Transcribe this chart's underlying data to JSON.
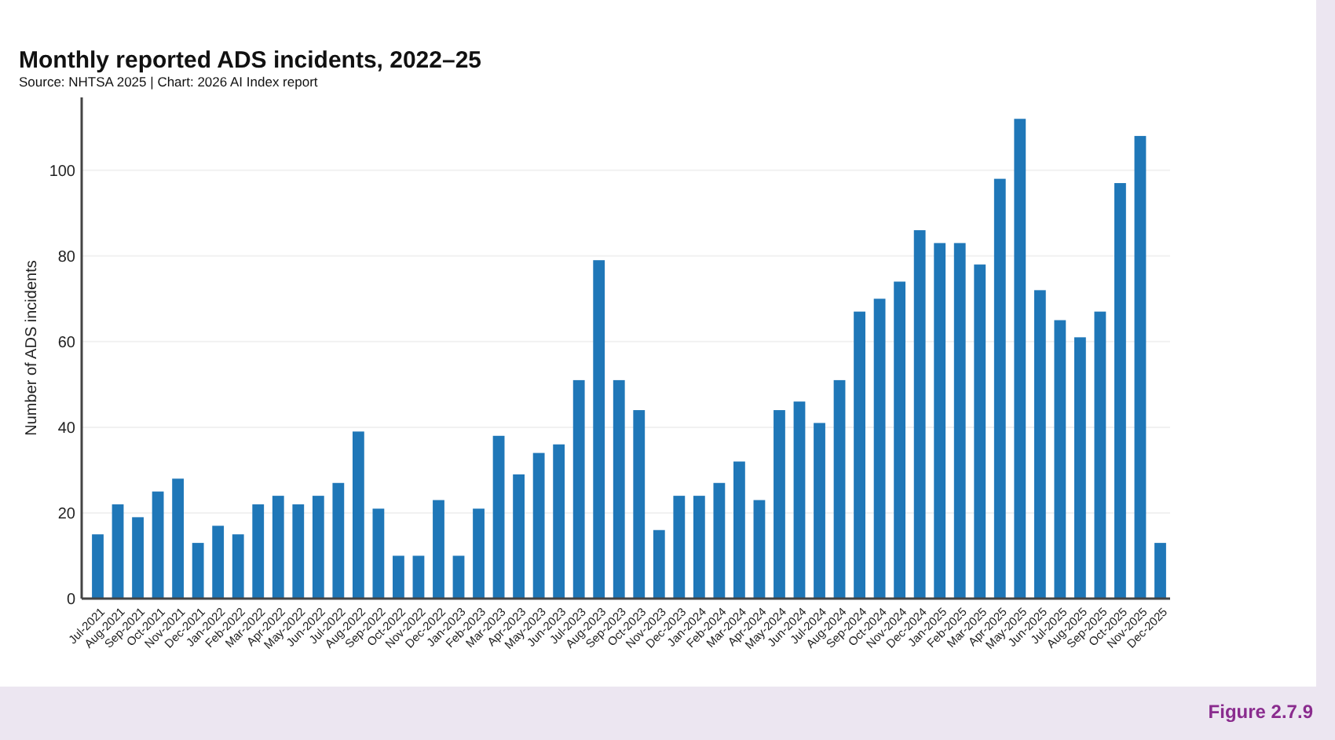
{
  "chart_data": {
    "type": "bar",
    "title": "Monthly reported ADS incidents, 2022–25",
    "subtitle": "Source: NHTSA 2025 | Chart: 2026 AI Index report",
    "ylabel": "Number of ADS incidents",
    "annotations": [
      "Figure 2.7.9"
    ],
    "categories": [
      "Jul-2021",
      "Aug-2021",
      "Sep-2021",
      "Oct-2021",
      "Nov-2021",
      "Dec-2021",
      "Jan-2022",
      "Feb-2022",
      "Mar-2022",
      "Apr-2022",
      "May-2022",
      "Jun-2022",
      "Jul-2022",
      "Aug-2022",
      "Sep-2022",
      "Oct-2022",
      "Nov-2022",
      "Dec-2022",
      "Jan-2023",
      "Feb-2023",
      "Mar-2023",
      "Apr-2023",
      "May-2023",
      "Jun-2023",
      "Jul-2023",
      "Aug-2023",
      "Sep-2023",
      "Oct-2023",
      "Nov-2023",
      "Dec-2023",
      "Jan-2024",
      "Feb-2024",
      "Mar-2024",
      "Apr-2024",
      "May-2024",
      "Jun-2024",
      "Jul-2024",
      "Aug-2024",
      "Sep-2024",
      "Oct-2024",
      "Nov-2024",
      "Dec-2024",
      "Jan-2025",
      "Feb-2025",
      "Mar-2025",
      "Apr-2025",
      "May-2025",
      "Jun-2025",
      "Jul-2025",
      "Aug-2025",
      "Sep-2025",
      "Oct-2025",
      "Nov-2025",
      "Dec-2025"
    ],
    "values": [
      15,
      22,
      19,
      25,
      28,
      13,
      17,
      15,
      22,
      24,
      22,
      24,
      27,
      39,
      21,
      10,
      10,
      23,
      10,
      21,
      38,
      29,
      34,
      36,
      51,
      79,
      51,
      44,
      16,
      24,
      24,
      27,
      32,
      23,
      44,
      46,
      41,
      51,
      67,
      70,
      74,
      86,
      83,
      83,
      78,
      98,
      112,
      72,
      65,
      61,
      67,
      97,
      108,
      13
    ],
    "color": "#1f77b8",
    "ylim": [
      0,
      117
    ],
    "yticks": [
      0,
      20,
      40,
      60,
      80,
      100
    ],
    "grid": "y"
  }
}
